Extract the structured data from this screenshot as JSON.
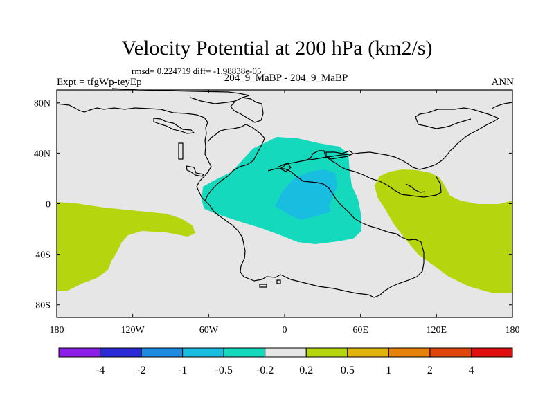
{
  "header": {
    "title": "Velocity Potential at 200 hPa (km2/s)",
    "stats": "rmsd= 0.224719 diff= -1.98838e-05",
    "experiment": "Expt = tfgWp-teyEp",
    "cases": "204_9_MaBP - 204_9_MaBP",
    "season": "ANN"
  },
  "map": {
    "projection": "cylindrical-equidistant",
    "lon_range": [
      -180,
      180
    ],
    "lat_range": [
      -90,
      90
    ],
    "x_ticks": [
      {
        "lon": -180,
        "label": "180"
      },
      {
        "lon": -120,
        "label": "120W"
      },
      {
        "lon": -60,
        "label": "60W"
      },
      {
        "lon": 0,
        "label": "0"
      },
      {
        "lon": 60,
        "label": "60E"
      },
      {
        "lon": 120,
        "label": "120E"
      },
      {
        "lon": 180,
        "label": "180"
      }
    ],
    "y_ticks": [
      {
        "lat": 80,
        "label": "80N"
      },
      {
        "lat": 40,
        "label": "40N"
      },
      {
        "lat": 0,
        "label": "0"
      },
      {
        "lat": -40,
        "label": "40S"
      },
      {
        "lat": -80,
        "label": "80S"
      }
    ],
    "background_color": "#e6e6e6",
    "regions": [
      {
        "name": "positive-pacific-west",
        "level": "0.2 to 0.5",
        "color": "#b5d60e"
      },
      {
        "name": "positive-indian-east",
        "level": "0.2 to 0.5",
        "color": "#b5d60e"
      },
      {
        "name": "negative-atlantic-outer",
        "level": "-0.5 to -0.2",
        "color": "#14d9bd"
      },
      {
        "name": "negative-atlantic-inner",
        "level": "-1 to -0.5",
        "color": "#19bde0"
      }
    ]
  },
  "colorbar": {
    "colors": [
      "#8c1ee8",
      "#2a2ad6",
      "#1e8ae0",
      "#19bde0",
      "#14d9bd",
      "#e6e6e6",
      "#b5d60e",
      "#e0b40a",
      "#e6820a",
      "#e0460a",
      "#e00f0f"
    ],
    "labels": [
      "-4",
      "-2",
      "-1",
      "-0.5",
      "-0.2",
      "0.2",
      "0.5",
      "1",
      "2",
      "4"
    ]
  }
}
